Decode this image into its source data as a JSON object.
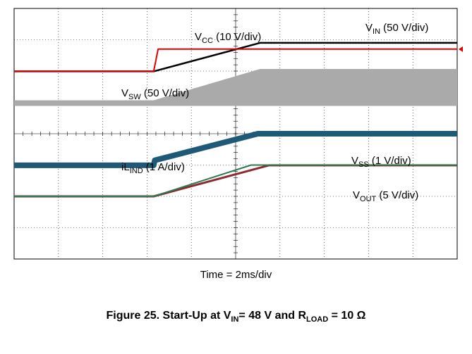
{
  "chart_data": {
    "type": "line",
    "title": "Start-Up at V_IN= 48 V and R_LOAD = 10 Ω",
    "caption": {
      "prefix": "Figure 25. Start-Up at V",
      "sub1": "IN",
      "mid": "= 48 V and R",
      "sub2": "LOAD",
      "suffix": " = 10 Ω"
    },
    "xlabel": "Time = 2ms/div",
    "xlim": [
      0,
      20
    ],
    "ylim": [
      0,
      8
    ],
    "x_unit": "ms",
    "grid": true,
    "series": [
      {
        "name": "VIN",
        "color": "#000000",
        "x": [
          0,
          6.3,
          11.1,
          20
        ],
        "y": [
          5.99,
          5.99,
          6.9,
          6.9
        ]
      },
      {
        "name": "VCC",
        "color": "#e00000",
        "x": [
          0,
          6.3,
          6.5,
          20
        ],
        "y": [
          5.99,
          5.99,
          6.7,
          6.7
        ]
      },
      {
        "name": "VSW",
        "color": "#aaaaaa",
        "x": [
          0,
          6.3,
          11.1,
          20
        ],
        "y": [
          5.0,
          5.0,
          6.0,
          6.0
        ]
      },
      {
        "name": "iLIND",
        "color": "#1e5a78",
        "x": [
          0,
          6.3,
          6.35,
          11.0,
          20
        ],
        "y": [
          2.99,
          2.99,
          3.15,
          4.0,
          4.0
        ]
      },
      {
        "name": "VSS",
        "color": "#2e7a50",
        "x": [
          0,
          6.3,
          10.7,
          20
        ],
        "y": [
          2.0,
          2.0,
          3.0,
          3.0
        ]
      },
      {
        "name": "VOUT",
        "color": "#8b2a30",
        "x": [
          0,
          6.3,
          11.5,
          20
        ],
        "y": [
          2.0,
          2.0,
          2.99,
          2.99
        ]
      }
    ],
    "labels": {
      "vcc": {
        "main": "V",
        "sub": "CC",
        "rest": " (10 V/div)"
      },
      "vin": {
        "main": "V",
        "sub": "IN",
        "rest": " (50 V/div)"
      },
      "vsw": {
        "main": "V",
        "sub": "SW",
        "rest": " (50 V/div)"
      },
      "ilind": {
        "main": "iL",
        "sub": "IND",
        "rest": " (1 A/div)"
      },
      "vss": {
        "main": "V",
        "sub": "SS",
        "rest": " (1 V/div)"
      },
      "vout": {
        "main": "V",
        "sub": "OUT",
        "rest": " (5 V/div)"
      }
    }
  }
}
